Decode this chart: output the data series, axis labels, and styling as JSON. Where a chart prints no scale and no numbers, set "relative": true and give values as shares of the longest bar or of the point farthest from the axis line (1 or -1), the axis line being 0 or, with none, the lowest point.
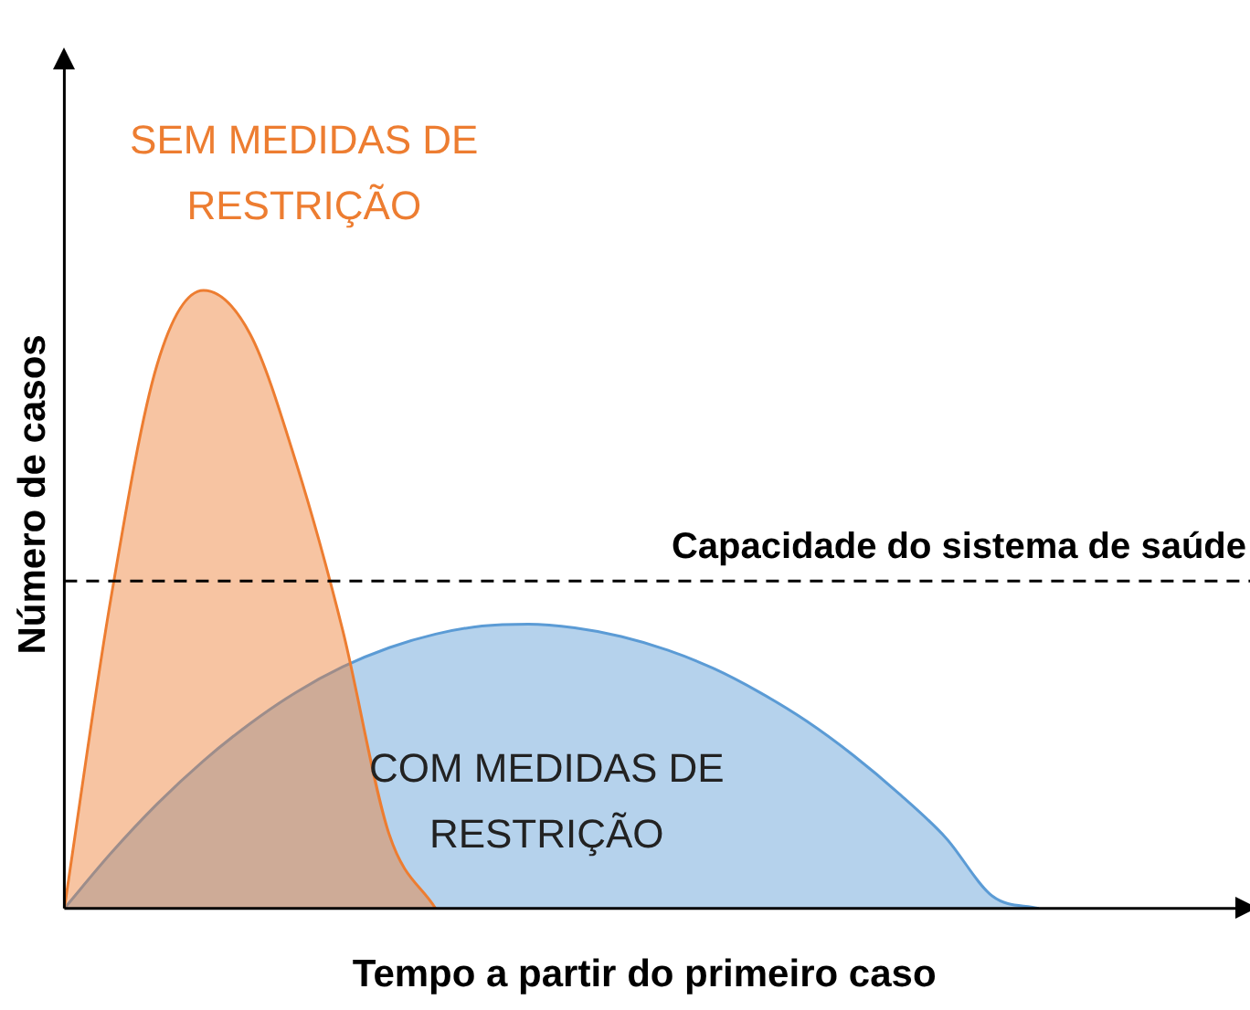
{
  "chart_data": {
    "type": "area",
    "relative": true,
    "xlabel": "Tempo a partir do primeiro caso",
    "ylabel": "Número de casos",
    "categories": [
      null,
      null,
      null,
      null,
      null,
      null,
      null,
      null,
      null,
      null,
      null,
      null,
      null,
      null,
      null,
      null,
      null,
      null,
      null,
      null,
      null,
      null,
      null,
      null,
      null,
      null
    ],
    "series": [
      {
        "name": "SEM MEDIDAS DE RESTRIÇÃO",
        "color": "#ed7d31",
        "values": [
          0,
          0.5,
          0.88,
          1,
          0.93,
          0.72,
          0.45,
          0.12,
          0,
          null,
          null,
          null,
          null,
          null,
          null,
          null,
          null,
          null,
          null,
          null,
          null,
          null,
          null,
          null,
          null,
          null
        ]
      },
      {
        "name": "COM MEDIDAS DE RESTRIÇÃO",
        "color": "#5b9bd5",
        "values": [
          0,
          0.089,
          0.169,
          0.239,
          0.299,
          0.35,
          0.391,
          0.422,
          0.444,
          0.457,
          0.46,
          0.454,
          0.44,
          0.418,
          0.388,
          0.349,
          0.303,
          0.248,
          0.185,
          0.114,
          0.02,
          0,
          null,
          null,
          null,
          null
        ]
      }
    ],
    "ref_lines": [
      {
        "axis": "y",
        "value": 0.53,
        "label": "Capacidade do sistema de saúde",
        "color": "#000000",
        "line_style": "dashed"
      }
    ],
    "grid": false,
    "legend": false,
    "marker": "none",
    "line_style": "solid"
  }
}
